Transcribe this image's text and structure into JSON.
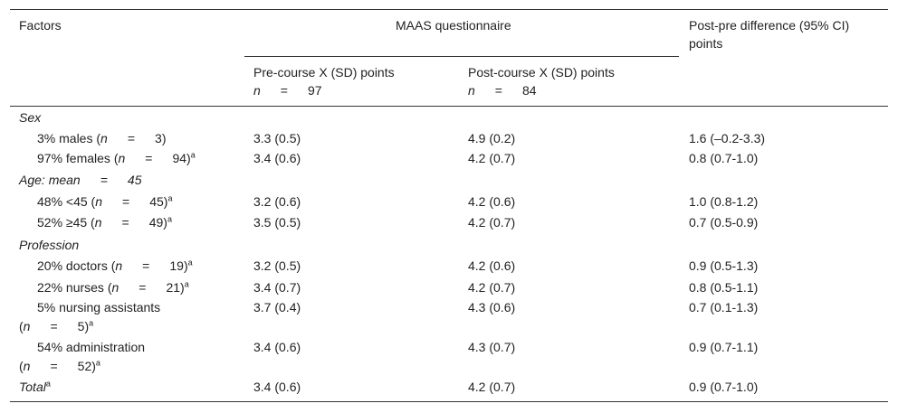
{
  "header": {
    "factors": "Factors",
    "maas": "MAAS questionnaire",
    "diff_line1": "Post-pre difference (95% CI)",
    "diff_line2": "points",
    "pre_label": "Pre-course X (SD) points",
    "pre_n_sym": "n",
    "pre_n_val": "97",
    "post_label": "Post-course X (SD) points",
    "post_n_sym": "n",
    "post_n_val": "84"
  },
  "sections": {
    "sex": "Sex",
    "age_label": "Age: mean",
    "age_val": "45",
    "profession": "Profession",
    "total": "Total"
  },
  "rows": [
    {
      "pre_text": "3% males (",
      "n": "3",
      "sup": "",
      "pre": "3.3 (0.5)",
      "post": "4.9 (0.2)",
      "diff": "1.6 (–0.2-3.3)"
    },
    {
      "pre_text": "97% females (",
      "n": "94",
      "sup": "a",
      "pre": "3.4 (0.6)",
      "post": "4.2 (0.7)",
      "diff": "0.8 (0.7-1.0)"
    },
    {
      "pre_text": "48% <45 (",
      "n": "45",
      "sup": "a",
      "pre": "3.2 (0.6)",
      "post": "4.2 (0.6)",
      "diff": "1.0 (0.8-1.2)"
    },
    {
      "pre_text": "52% ≥45 (",
      "n": "49",
      "sup": "a",
      "pre": "3.5 (0.5)",
      "post": "4.2 (0.7)",
      "diff": "0.7 (0.5-0.9)"
    },
    {
      "pre_text": "20% doctors (",
      "n": "19",
      "sup": "a",
      "pre": "3.2 (0.5)",
      "post": "4.2 (0.6)",
      "diff": "0.9 (0.5-1.3)"
    },
    {
      "pre_text": "22% nurses (",
      "n": "21",
      "sup": "a",
      "pre": "3.4 (0.7)",
      "post": "4.2 (0.7)",
      "diff": "0.8 (0.5-1.1)"
    },
    {
      "pre_text": "5% nursing assistants",
      "n": "5",
      "sup": "a",
      "pre": "3.7 (0.4)",
      "post": "4.3 (0.6)",
      "diff": "0.7 (0.1-1.3)"
    },
    {
      "pre_text": "54% administration",
      "n": "52",
      "sup": "a",
      "pre": "3.4 (0.6)",
      "post": "4.3 (0.7)",
      "diff": "0.9 (0.7-1.1)"
    }
  ],
  "total_row": {
    "sup": "a",
    "pre": "3.4 (0.6)",
    "post": "4.2 (0.7)",
    "diff": "0.9 (0.7-1.0)"
  },
  "symbols": {
    "n": "n",
    "eq": "=",
    "close": ")"
  }
}
